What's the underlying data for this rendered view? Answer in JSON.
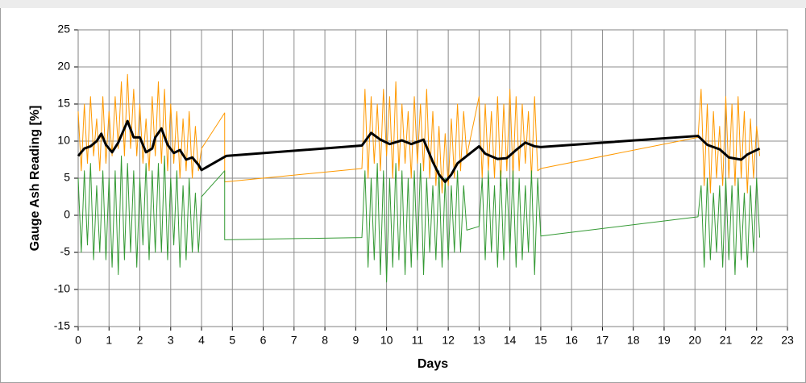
{
  "chart_data": {
    "type": "line",
    "xlabel": "Days",
    "ylabel": "Gauge Ash Reading [%]",
    "xlim": [
      0,
      23
    ],
    "ylim": [
      -15,
      25
    ],
    "xticks": [
      0,
      1,
      2,
      3,
      4,
      5,
      6,
      7,
      8,
      9,
      10,
      11,
      12,
      13,
      14,
      15,
      16,
      17,
      18,
      19,
      20,
      21,
      22,
      23
    ],
    "yticks": [
      -15,
      -10,
      -5,
      0,
      5,
      10,
      15,
      20,
      25
    ],
    "grid": true,
    "x": [
      0,
      0.1,
      0.2,
      0.3,
      0.4,
      0.5,
      0.6,
      0.7,
      0.8,
      0.9,
      1,
      1.1,
      1.2,
      1.3,
      1.4,
      1.5,
      1.6,
      1.7,
      1.8,
      1.9,
      2,
      2.1,
      2.2,
      2.3,
      2.4,
      2.5,
      2.6,
      2.7,
      2.8,
      2.9,
      3,
      3.1,
      3.2,
      3.3,
      3.4,
      3.5,
      3.6,
      3.7,
      3.8,
      3.9,
      4,
      4.75,
      4.75,
      9.2,
      9.3,
      9.4,
      9.5,
      9.6,
      9.7,
      9.8,
      9.9,
      10,
      10.1,
      10.2,
      10.3,
      10.4,
      10.5,
      10.6,
      10.7,
      10.8,
      10.9,
      11,
      11.1,
      11.2,
      11.3,
      11.4,
      11.5,
      11.6,
      11.7,
      11.8,
      11.9,
      12,
      12.1,
      12.2,
      12.3,
      12.4,
      12.5,
      12.6,
      13,
      13.1,
      13.2,
      13.3,
      13.4,
      13.5,
      13.6,
      13.7,
      13.8,
      13.9,
      14,
      14.1,
      14.2,
      14.3,
      14.4,
      14.5,
      14.6,
      14.7,
      14.8,
      14.9,
      15,
      20.1,
      20.2,
      20.3,
      20.4,
      20.5,
      20.6,
      20.7,
      20.8,
      20.9,
      21,
      21.1,
      21.2,
      21.3,
      21.4,
      21.5,
      21.6,
      21.7,
      21.8,
      21.9,
      22,
      22.1
    ],
    "series": [
      {
        "color": "#ff9900",
        "width": 1,
        "values": [
          14,
          6,
          15,
          7,
          16,
          8,
          13,
          6,
          16,
          7,
          14,
          8,
          16,
          9,
          18,
          8,
          19,
          9,
          17,
          8,
          15,
          7,
          13,
          6,
          16,
          8,
          18,
          7,
          17,
          6,
          15,
          7,
          14,
          5,
          13,
          6,
          14,
          5,
          12,
          6,
          9,
          13.8,
          4.5,
          6.3,
          17,
          5,
          16,
          7,
          15,
          6,
          17,
          8,
          16,
          5,
          18,
          6,
          15,
          7,
          14,
          5,
          16,
          7,
          15,
          6,
          17,
          5,
          14,
          4,
          12,
          3,
          11,
          4,
          13,
          5,
          15,
          6,
          14,
          8,
          16,
          5,
          15,
          6,
          14,
          5,
          16,
          4,
          15,
          6,
          17,
          5,
          16,
          6,
          15,
          7,
          14,
          5,
          16,
          6,
          6.3,
          10.5,
          17,
          4,
          15,
          3,
          14,
          5,
          12,
          4,
          16,
          5,
          15,
          4,
          16,
          5,
          14,
          3,
          13,
          5,
          12,
          8
        ]
      },
      {
        "color": "#339933",
        "width": 1,
        "values": [
          5,
          -5,
          6,
          -4,
          7,
          -6,
          4,
          -5,
          6,
          -6,
          5,
          -7,
          6,
          -8,
          8,
          -6,
          7,
          -5,
          6,
          -7,
          5,
          -4,
          7,
          -6,
          6,
          -5,
          7,
          -5,
          8,
          -6,
          5,
          -4,
          6,
          -7,
          4,
          -6,
          5,
          -5,
          3,
          -5,
          2.5,
          6,
          -3.3,
          -3,
          6,
          -7,
          5,
          -6,
          7,
          -8,
          6,
          -9,
          5,
          -7,
          7,
          -6,
          6,
          -8,
          5,
          -7,
          6,
          -6,
          7,
          -8,
          5,
          -5,
          4,
          -6,
          6,
          -7,
          5,
          -6,
          4,
          -5,
          6,
          -5,
          4,
          -2,
          -1.5,
          5,
          -6,
          6,
          -5,
          4,
          -7,
          6,
          -6,
          5,
          -5,
          6,
          -7,
          5,
          -6,
          4,
          -5,
          6,
          -8,
          5,
          -2.8,
          -0.2,
          4,
          -7,
          5,
          -6,
          3,
          -5,
          4,
          -7,
          5,
          -6,
          4,
          -8,
          5,
          -6,
          3,
          -7,
          4,
          -5,
          5,
          -3
        ]
      },
      {
        "color": "#000000",
        "width": 3,
        "x": [
          0,
          0.2,
          0.4,
          0.6,
          0.75,
          0.9,
          1.1,
          1.3,
          1.6,
          1.8,
          2,
          2.2,
          2.4,
          2.5,
          2.7,
          2.9,
          3.1,
          3.3,
          3.5,
          3.7,
          3.9,
          4,
          4.8,
          9.2,
          9.5,
          9.8,
          10.1,
          10.5,
          10.8,
          11.2,
          11.5,
          11.7,
          11.9,
          12.1,
          12.3,
          12.6,
          13,
          13.2,
          13.6,
          13.9,
          14.2,
          14.5,
          14.8,
          15,
          20.1,
          20.4,
          20.8,
          21.1,
          21.5,
          21.7,
          22.1
        ],
        "values": [
          8,
          9,
          9.3,
          10,
          11,
          9.5,
          8.5,
          9.8,
          12.7,
          10.5,
          10.5,
          8.5,
          9,
          10.5,
          11.7,
          9.5,
          8.4,
          8.8,
          7.5,
          7.8,
          6.8,
          6.1,
          8,
          9.4,
          11.1,
          10.2,
          9.6,
          10.1,
          9.6,
          10.2,
          7.2,
          5.5,
          4.5,
          5.5,
          7,
          8,
          9.3,
          8.3,
          7.6,
          7.7,
          8.8,
          9.8,
          9.3,
          9.2,
          10.7,
          9.5,
          8.9,
          7.8,
          7.5,
          8.2,
          9
        ]
      }
    ]
  }
}
